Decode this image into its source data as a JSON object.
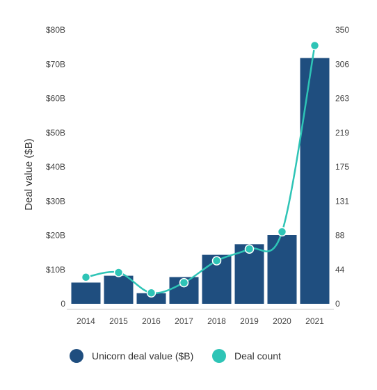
{
  "chart_data": {
    "type": "bar",
    "categories": [
      "2014",
      "2015",
      "2016",
      "2017",
      "2018",
      "2019",
      "2020",
      "2021"
    ],
    "ylabel": "Deal value ($B)",
    "y_left_ticks": [
      "0",
      "$10B",
      "$20B",
      "$30B",
      "$40B",
      "$50B",
      "$60B",
      "$70B",
      "$80B"
    ],
    "y_left_range": [
      0,
      80
    ],
    "y_right_ticks": [
      "0",
      "44",
      "88",
      "131",
      "175",
      "219",
      "263",
      "306",
      "350"
    ],
    "y_right_range": [
      0,
      350
    ],
    "grid": false,
    "legend_position": "bottom",
    "series": [
      {
        "name": "Unicorn deal value ($B)",
        "type": "bar",
        "axis": "left",
        "color": "#1f4e7f",
        "values": [
          6.2,
          8.2,
          3.1,
          7.8,
          14.3,
          17.4,
          20.1,
          71.8
        ]
      },
      {
        "name": "Deal count",
        "type": "line",
        "axis": "right",
        "color": "#2ec4b6",
        "values": [
          34,
          40,
          14,
          27,
          55,
          70,
          92,
          330
        ]
      }
    ]
  }
}
